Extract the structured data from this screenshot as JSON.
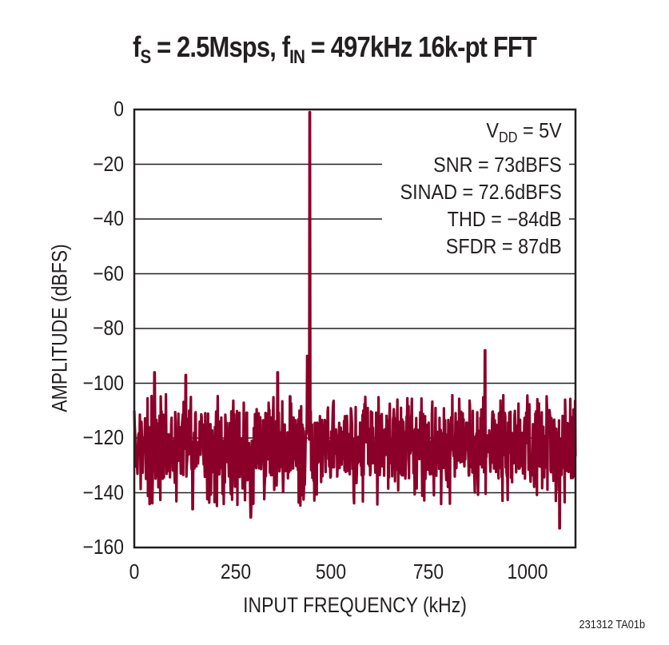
{
  "title": {
    "f_s": "f",
    "sub_s": "S",
    "part1": " = 2.5Msps, ",
    "f_in": "f",
    "sub_in": "IN",
    "part2": " = 497kHz 16k-pt FFT"
  },
  "stats": {
    "vdd_prefix": "V",
    "vdd_sub": "DD",
    "vdd_value": " = 5V",
    "snr": "SNR = 73dBFS",
    "sinad": "SINAD = 72.6dBFS",
    "thd": "THD = −84dB",
    "sfdr": "SFDR = 87dB"
  },
  "footnote": "231312 TA01b",
  "colors": {
    "trace": "#8b0029",
    "axis": "#231f20"
  },
  "chart_data": {
    "type": "line",
    "title": "fS = 2.5Msps, fIN = 497kHz 16k-pt FFT",
    "xlabel": "INPUT FREQUENCY (kHz)",
    "ylabel": "AMPLITUDE (dBFS)",
    "xlim": [
      0,
      1250
    ],
    "ylim": [
      -160,
      0
    ],
    "xticks": [
      "0",
      "250",
      "500",
      "750",
      "1000"
    ],
    "yticks": [
      "0",
      "−20",
      "−40",
      "−60",
      "−80",
      "−100",
      "−120",
      "−140",
      "−160"
    ],
    "grid": "horizontal",
    "annotations": [
      "VDD = 5V",
      "SNR = 73dBFS",
      "SINAD = 72.6dBFS",
      "THD = −84dB",
      "SFDR = 87dB"
    ],
    "series": [
      {
        "name": "FFT spectrum",
        "noise_floor_range_dB": [
          -135,
          -110
        ],
        "peaks": [
          {
            "freq_kHz": 497,
            "amplitude_dB": -1
          },
          {
            "freq_kHz": 994,
            "amplitude_dB": -88
          },
          {
            "freq_kHz": 57,
            "amplitude_dB": -96
          },
          {
            "freq_kHz": 146,
            "amplitude_dB": -97
          },
          {
            "freq_kHz": 406,
            "amplitude_dB": -96
          },
          {
            "freq_kHz": 490,
            "amplitude_dB": -90
          }
        ],
        "min_dips_dB": [
          {
            "freq_kHz": 165,
            "amplitude_dB": -146
          },
          {
            "freq_kHz": 330,
            "amplitude_dB": -149
          },
          {
            "freq_kHz": 1205,
            "amplitude_dB": -153
          }
        ]
      }
    ]
  }
}
